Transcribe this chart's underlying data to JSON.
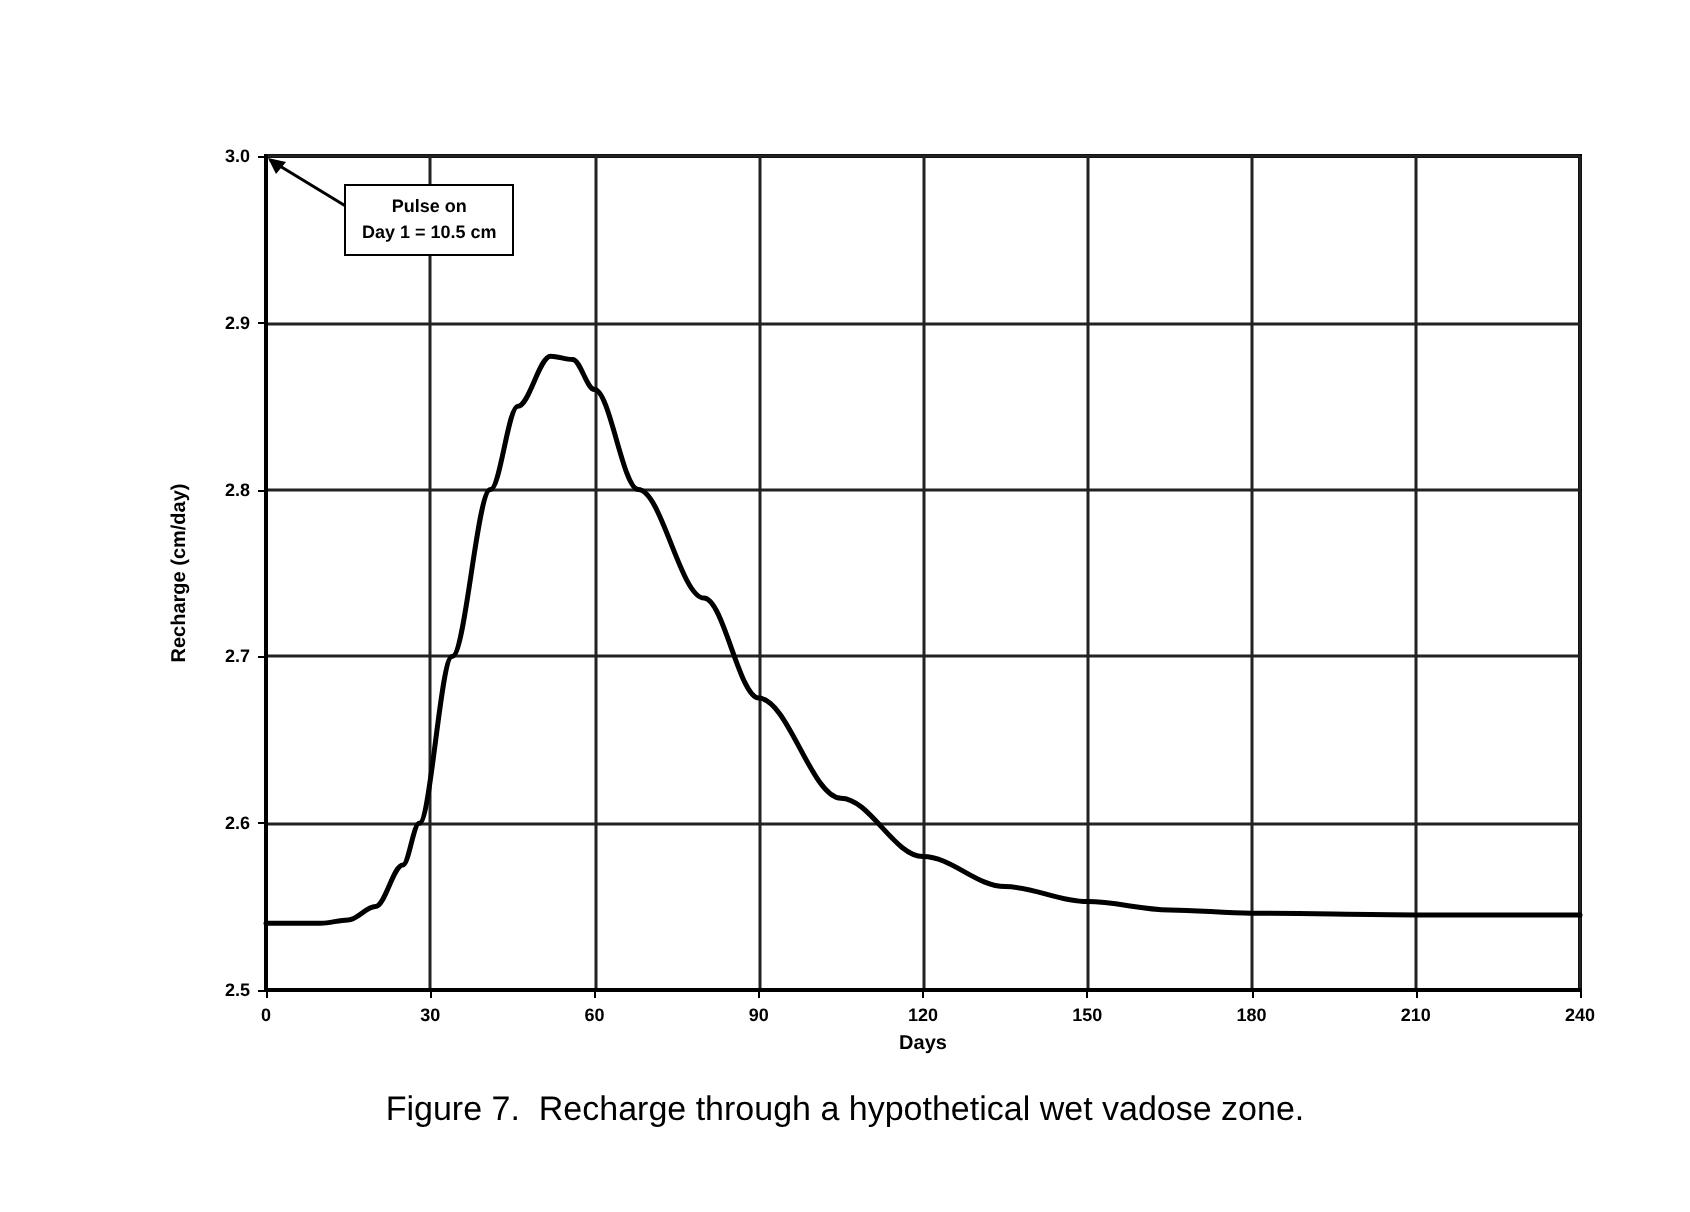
{
  "chart_data": {
    "type": "line",
    "title": "Figure 7.  Recharge through a hypothetical wet vadose zone.",
    "xlabel": "Days",
    "ylabel": "Recharge (cm/day)",
    "x": [
      0,
      10,
      15,
      20,
      25,
      28,
      34,
      41,
      46,
      52,
      56,
      60,
      68,
      80,
      90,
      105,
      120,
      135,
      150,
      165,
      180,
      210,
      240
    ],
    "series": [
      {
        "color": "#000000",
        "values": [
          2.54,
          2.54,
          2.542,
          2.55,
          2.575,
          2.6,
          2.7,
          2.8,
          2.85,
          2.88,
          2.878,
          2.86,
          2.8,
          2.735,
          2.675,
          2.615,
          2.58,
          2.562,
          2.553,
          2.548,
          2.546,
          2.545,
          2.545
        ]
      }
    ],
    "xlim": [
      0,
      240
    ],
    "xticks": [
      0,
      30,
      60,
      90,
      120,
      150,
      180,
      210,
      240
    ],
    "ylim": [
      2.5,
      3.0
    ],
    "yticks": [
      {
        "value": 2.5,
        "label": "2.5"
      },
      {
        "value": 2.6,
        "label": "2.6"
      },
      {
        "value": 2.7,
        "label": "2.7"
      },
      {
        "value": 2.8,
        "label": "2.8"
      },
      {
        "value": 2.9,
        "label": "2.9"
      },
      {
        "value": 3.0,
        "label": "3.0"
      }
    ],
    "annotations": [
      "Pulse on\nDay 1 = 10.5 cm"
    ],
    "grid": true,
    "marker": "none",
    "line_style": "solid"
  }
}
